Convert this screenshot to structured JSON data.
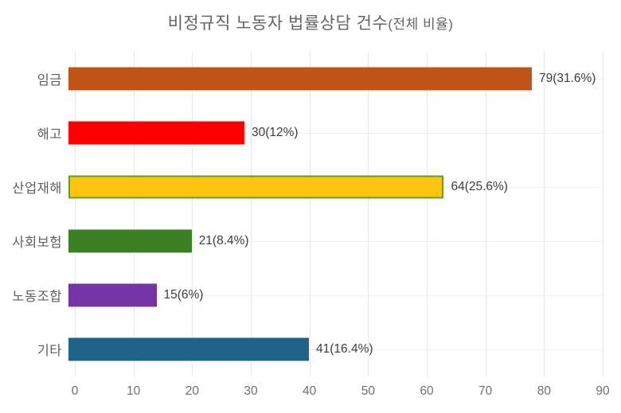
{
  "chart_data": {
    "type": "bar",
    "orientation": "horizontal",
    "title": "비정규직 노동자 법률상담 건수",
    "title_suffix": "(전체 비율)",
    "categories": [
      "임금",
      "해고",
      "산업재해",
      "사회보험",
      "노동조합",
      "기타"
    ],
    "values": [
      79,
      30,
      64,
      21,
      15,
      41
    ],
    "percentages": [
      31.6,
      12,
      25.6,
      8.4,
      6,
      16.4
    ],
    "value_labels": [
      "79(31.6%)",
      "30(12%)",
      "64(25.6%)",
      "21(8.4%)",
      "15(6%)",
      "41(16.4%)"
    ],
    "bar_colors": [
      "#bf5417",
      "#ff0000",
      "#fcc40d",
      "#3c8024",
      "#7434a4",
      "#1f6488"
    ],
    "bar_border_colors": [
      null,
      null,
      "#5aa231",
      null,
      null,
      null
    ],
    "xlabel": "",
    "ylabel": "",
    "xlim": [
      0,
      90
    ],
    "x_ticks": [
      0,
      10,
      20,
      30,
      40,
      50,
      60,
      70,
      80,
      90
    ],
    "grid": "vertical-and-horizontal-faint",
    "legend": "none",
    "colors": {
      "background": "#ffffff",
      "title_text": "#646464",
      "category_text": "#5f5f5f",
      "value_text": "#3d3d3d",
      "tick_text": "#6f6f6f",
      "vertical_gridline": "#e7e7ea",
      "horizontal_gridline": "#efeff1"
    }
  }
}
